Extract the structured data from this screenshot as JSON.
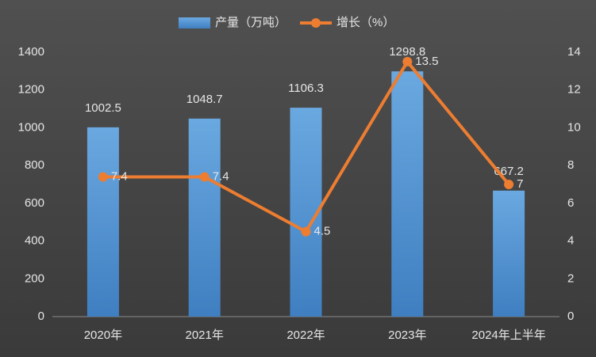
{
  "chart_data": {
    "type": "combo",
    "categories": [
      "2020年",
      "2021年",
      "2022年",
      "2023年",
      "2024年上半年"
    ],
    "series": [
      {
        "name": "产量（万吨）",
        "type": "bar",
        "color": "#5b9bd5",
        "values": [
          1002.5,
          1048.7,
          1106.3,
          1298.8,
          667.2
        ]
      },
      {
        "name": "增长（%）",
        "type": "line",
        "axis": "y2",
        "color": "#ed7d31",
        "values": [
          7.4,
          7.4,
          4.5,
          13.5,
          7
        ]
      }
    ],
    "ylim": [
      0,
      1400
    ],
    "yticks": [
      0,
      200,
      400,
      600,
      800,
      1000,
      1200,
      1400
    ],
    "y2lim": [
      0,
      14
    ],
    "y2ticks": [
      0,
      2,
      4,
      6,
      8,
      10,
      12,
      14
    ],
    "grid": false,
    "legend": "top"
  }
}
